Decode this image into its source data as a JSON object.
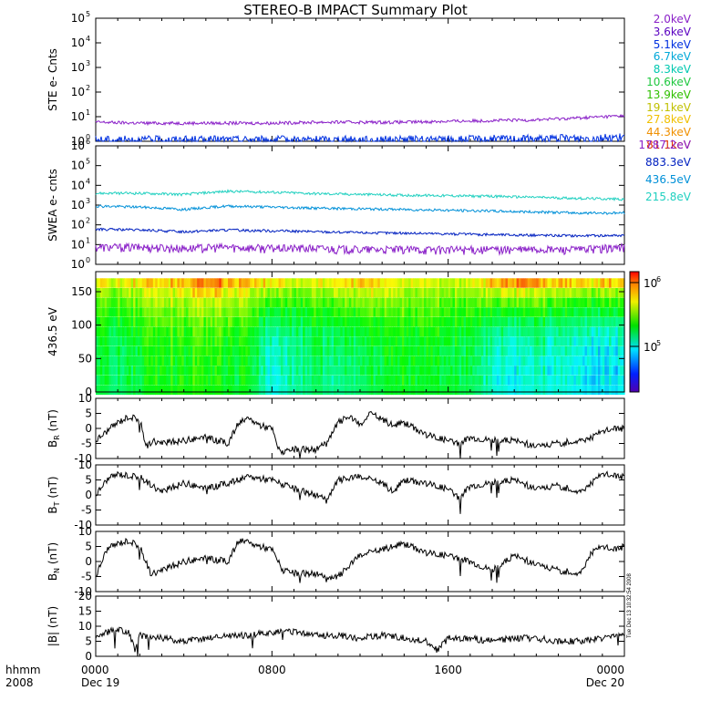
{
  "title": "STEREO-B IMPACT Summary Plot",
  "ste_legend": [
    {
      "label": "2.0keV",
      "color": "#8a20c8"
    },
    {
      "label": "3.6keV",
      "color": "#5a00c0"
    },
    {
      "label": "5.1keV",
      "color": "#0030e0"
    },
    {
      "label": "6.7keV",
      "color": "#00a8d8"
    },
    {
      "label": "8.3keV",
      "color": "#00c8b0"
    },
    {
      "label": "10.6keV",
      "color": "#20c840"
    },
    {
      "label": "13.9keV",
      "color": "#30c000"
    },
    {
      "label": "19.1keV",
      "color": "#c0c000"
    },
    {
      "label": "27.8keV",
      "color": "#f0c000"
    },
    {
      "label": "44.3keV",
      "color": "#f09000"
    },
    {
      "label": "81.1keV",
      "color": "#e03000"
    }
  ],
  "swea_legend": [
    {
      "label": "1787.2eV",
      "color": "#8a20c8"
    },
    {
      "label": "883.3eV",
      "color": "#0020c0"
    },
    {
      "label": "436.5eV",
      "color": "#0090d8"
    },
    {
      "label": "215.8eV",
      "color": "#20d0c0"
    }
  ],
  "x_axis": {
    "ticks": [
      {
        "time": "0000",
        "date": "Dec 19",
        "hour": 0
      },
      {
        "time": "0800",
        "date": "",
        "hour": 8
      },
      {
        "time": "1600",
        "date": "",
        "hour": 16
      },
      {
        "time": "0000",
        "date": "Dec 20",
        "hour": 24
      }
    ],
    "label_top": "hhmm",
    "label_bottom": "2008"
  },
  "stamp": "Tue Dec 13 10:32:54 2008",
  "colorbar": {
    "tick_labels": [
      "10",
      "10"
    ],
    "tick_exps": [
      "6",
      "5"
    ],
    "scale": "log"
  },
  "chart_data": [
    {
      "id": "ste",
      "type": "line",
      "ylabel": "STE e- Cnts",
      "yscale": "log",
      "ylim": [
        1,
        100000
      ],
      "ytick_bases": [
        "10",
        "10",
        "10",
        "10",
        "10",
        "10"
      ],
      "ytick_exps": [
        "0",
        "1",
        "2",
        "3",
        "4",
        "5"
      ],
      "x": [
        0,
        2,
        4,
        6,
        8,
        10,
        12,
        14,
        16,
        18,
        20,
        22,
        24
      ],
      "series": [
        {
          "color": "#8a20c8",
          "values": [
            6,
            5.5,
            5.5,
            5.5,
            5.5,
            6,
            6,
            6,
            6.5,
            7,
            7.5,
            9,
            11
          ]
        },
        {
          "color": "#0030e0",
          "values": [
            1.2,
            1.2,
            1.2,
            1.2,
            1.2,
            1.2,
            1.2,
            1.2,
            1.2,
            1.3,
            1.3,
            1.4,
            1.5
          ]
        }
      ]
    },
    {
      "id": "swea",
      "type": "line",
      "ylabel": "SWEA e- cnts",
      "yscale": "log",
      "ylim": [
        1,
        1000000
      ],
      "ytick_bases": [
        "10",
        "10",
        "10",
        "10",
        "10",
        "10",
        "10"
      ],
      "ytick_exps": [
        "0",
        "1",
        "2",
        "3",
        "4",
        "5",
        "6"
      ],
      "x": [
        0,
        2,
        4,
        6,
        8,
        10,
        12,
        14,
        16,
        18,
        20,
        22,
        24
      ],
      "series": [
        {
          "name": "215.8eV",
          "color": "#20d0c0",
          "values": [
            4000,
            4000,
            3500,
            5000,
            4500,
            3800,
            3500,
            3200,
            3000,
            2800,
            2500,
            2200,
            2000
          ]
        },
        {
          "name": "436.5eV",
          "color": "#0090d8",
          "values": [
            900,
            800,
            600,
            900,
            800,
            700,
            650,
            600,
            550,
            500,
            450,
            400,
            400
          ]
        },
        {
          "name": "883.3eV",
          "color": "#0020c0",
          "values": [
            60,
            55,
            45,
            55,
            50,
            45,
            40,
            38,
            35,
            32,
            30,
            28,
            30
          ]
        },
        {
          "name": "1787.2eV",
          "color": "#8a20c8",
          "values": [
            8,
            8,
            7,
            8,
            7,
            7,
            6,
            6,
            6,
            6,
            6,
            6,
            8
          ]
        }
      ]
    },
    {
      "id": "pad",
      "type": "heatmap",
      "ylabel": "436.5 eV",
      "ylim": [
        0,
        180
      ],
      "yticks": [
        "0",
        "50",
        "100",
        "150"
      ],
      "x_hours": [
        0,
        1,
        2,
        3,
        4,
        5,
        6,
        7,
        8,
        9,
        10,
        11,
        12,
        13,
        14,
        15,
        16,
        17,
        18,
        19,
        20,
        21,
        22,
        23,
        24
      ],
      "y_top_level": [
        0.75,
        0.72,
        0.74,
        0.78,
        0.82,
        0.86,
        0.84,
        0.78,
        0.75,
        0.7,
        0.72,
        0.76,
        0.78,
        0.76,
        0.72,
        0.7,
        0.72,
        0.72,
        0.82,
        0.86,
        0.84,
        0.8,
        0.78,
        0.78,
        0.78
      ],
      "y_mid_level": [
        0.45,
        0.4,
        0.45,
        0.5,
        0.52,
        0.5,
        0.48,
        0.45,
        0.25,
        0.35,
        0.4,
        0.35,
        0.4,
        0.45,
        0.48,
        0.45,
        0.48,
        0.42,
        0.3,
        0.25,
        0.3,
        0.28,
        0.25,
        0.22,
        0.25
      ]
    },
    {
      "id": "br",
      "type": "line",
      "ylabel": "B_R (nT)",
      "ylim": [
        -10,
        10
      ],
      "yticks": [
        "10",
        "5",
        "0",
        "-5",
        "-10"
      ],
      "x": [
        0,
        1,
        1.5,
        2,
        2.3,
        2.6,
        3,
        4,
        5,
        6,
        6.5,
        7,
        7.5,
        8,
        8.3,
        8.6,
        9,
        10,
        10.5,
        11,
        11.5,
        12,
        12.5,
        13,
        13.5,
        14,
        15,
        16,
        16.5,
        17,
        18,
        19,
        20,
        21,
        22,
        22.5,
        23,
        23.5,
        24
      ],
      "series": [
        {
          "color": "#000000",
          "values": [
            -4,
            2,
            4,
            3,
            -6,
            -4,
            -5,
            -4,
            -3,
            -5,
            2,
            3,
            1,
            0,
            -7,
            -8,
            -7,
            -7,
            -5,
            2,
            4,
            1,
            5,
            3,
            1,
            2,
            -2,
            -4,
            -5,
            -3,
            -4,
            -4,
            -6,
            -5,
            -4,
            -3,
            -1,
            0,
            0
          ]
        }
      ]
    },
    {
      "id": "bt",
      "type": "line",
      "ylabel": "B_T (nT)",
      "ylim": [
        -10,
        10
      ],
      "yticks": [
        "10",
        "5",
        "0",
        "-5",
        "-10"
      ],
      "x": [
        0,
        0.5,
        1,
        2,
        3,
        4,
        5,
        6,
        7,
        8,
        9,
        10,
        10.5,
        11,
        12,
        13,
        13.5,
        14,
        15,
        16,
        16.5,
        17,
        18,
        19,
        20,
        21,
        22,
        23,
        24
      ],
      "series": [
        {
          "color": "#000000",
          "values": [
            0,
            5,
            7,
            6,
            1,
            4,
            2,
            4,
            6,
            5,
            2,
            0,
            -2,
            5,
            6,
            4,
            1,
            5,
            4,
            2,
            -1,
            3,
            4,
            5,
            2,
            3,
            1,
            7,
            6
          ]
        }
      ]
    },
    {
      "id": "bn",
      "type": "line",
      "ylabel": "B_N (nT)",
      "ylim": [
        -10,
        10
      ],
      "yticks": [
        "10",
        "5",
        "0",
        "-5",
        "-10"
      ],
      "x": [
        0,
        0.5,
        1,
        1.5,
        2,
        2.5,
        3,
        4,
        5,
        6,
        6.5,
        7,
        7.5,
        8,
        8.5,
        9,
        10,
        10.5,
        11,
        12,
        13,
        14,
        15,
        16,
        17,
        18,
        19,
        20,
        21,
        22,
        22.5,
        23,
        23.5,
        24
      ],
      "series": [
        {
          "color": "#000000",
          "values": [
            -5,
            4,
            6,
            7,
            5,
            -4,
            -3,
            0,
            1,
            0,
            7,
            6,
            5,
            4,
            -3,
            -4,
            -4,
            -6,
            -5,
            2,
            4,
            6,
            3,
            2,
            0,
            -3,
            2,
            -1,
            -3,
            -4,
            3,
            5,
            4,
            5
          ]
        }
      ]
    },
    {
      "id": "bmag",
      "type": "line",
      "ylabel": "|B| (nT)",
      "ylim": [
        0,
        20
      ],
      "yticks": [
        "20",
        "15",
        "10",
        "5",
        "0"
      ],
      "x": [
        0,
        0.5,
        1,
        1.5,
        1.8,
        2,
        3,
        4,
        5,
        6,
        7,
        8,
        9,
        10,
        11,
        12,
        13,
        14,
        15,
        15.5,
        16,
        17,
        18,
        19,
        20,
        21,
        22,
        23,
        24
      ],
      "series": [
        {
          "color": "#000000",
          "values": [
            7,
            8,
            9,
            8,
            2,
            7,
            6,
            5,
            6,
            7,
            7,
            8,
            8,
            7,
            7,
            6,
            7,
            6,
            5,
            2,
            6,
            6,
            5,
            6,
            6,
            5,
            5,
            6,
            7
          ]
        }
      ]
    }
  ]
}
